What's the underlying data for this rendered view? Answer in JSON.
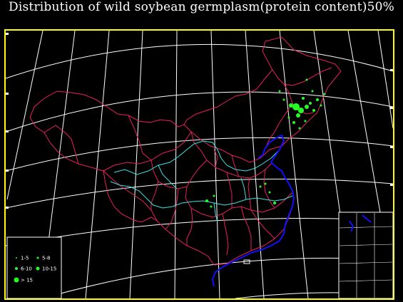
{
  "title": "Distribution of wild soybean germplasm(protein content)50%",
  "colors": {
    "background": "#000000",
    "frame": "#ffff00",
    "graticule": "#ffffff",
    "province_borders": "#e8205a",
    "rivers": "#40e0e0",
    "coastline": "#1010ff",
    "sites": "#22ff22",
    "legend_symbols": "#22ff22"
  },
  "legend": {
    "items": [
      {
        "label": "1-5",
        "size_class": 1
      },
      {
        "label": "5-8",
        "size_class": 2
      },
      {
        "label": "6-10",
        "size_class": 3
      },
      {
        "label": "10-15",
        "size_class": 4
      },
      {
        "label": "> 15",
        "size_class": 5
      }
    ]
  },
  "inset": {
    "icon": "south-china-sea-inset-map"
  }
}
